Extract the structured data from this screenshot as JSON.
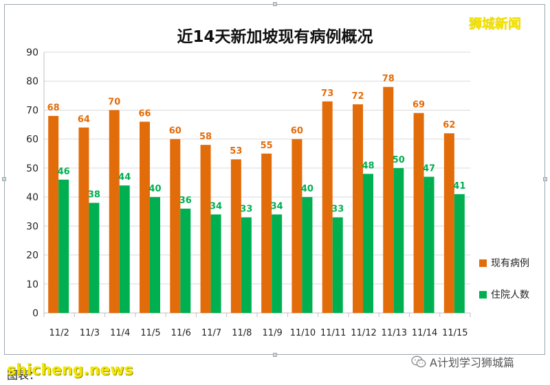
{
  "watermark_top": "狮城新闻",
  "chart_data": {
    "type": "bar",
    "title": "近14天新加坡现有病例概况",
    "categories": [
      "11/2",
      "11/3",
      "11/4",
      "11/5",
      "11/6",
      "11/7",
      "11/8",
      "11/9",
      "11/10",
      "11/11",
      "11/12",
      "11/13",
      "11/14",
      "11/15"
    ],
    "series": [
      {
        "name": "现有病例",
        "color": "#e36c0a",
        "label_color": "#e36c0a",
        "values": [
          68,
          64,
          70,
          66,
          60,
          58,
          53,
          55,
          60,
          73,
          72,
          78,
          69,
          62
        ]
      },
      {
        "name": "住院人数",
        "color": "#00b050",
        "label_color": "#00b050",
        "values": [
          46,
          38,
          44,
          40,
          36,
          34,
          33,
          34,
          40,
          33,
          48,
          50,
          47,
          41
        ]
      }
    ],
    "ylim": [
      0,
      90
    ],
    "yticks": [
      0,
      10,
      20,
      30,
      40,
      50,
      60,
      70,
      80,
      90
    ],
    "grid": true,
    "legend_position": "right"
  },
  "footer": {
    "source_label": "图表：",
    "site": "shicheng.news",
    "wechat_account": "A计划学习狮城篇"
  }
}
